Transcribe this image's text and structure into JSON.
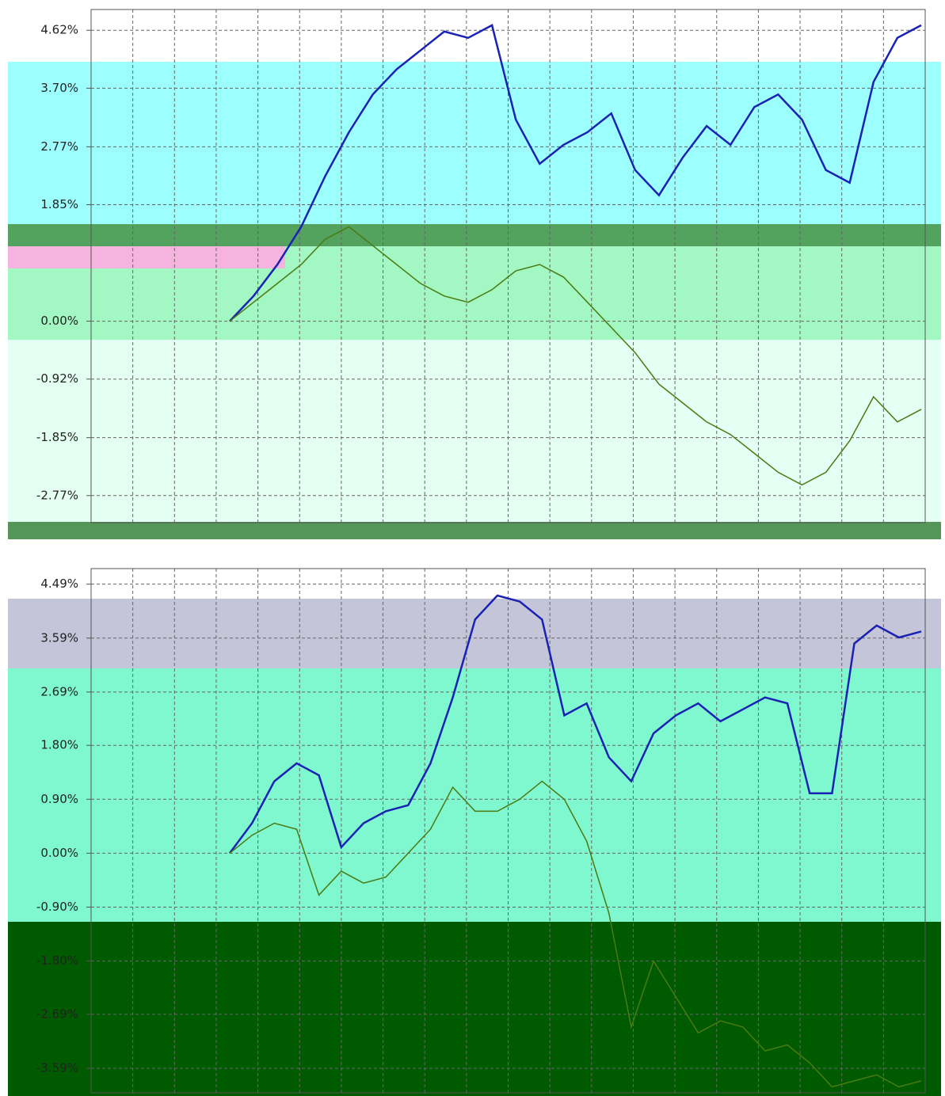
{
  "chart_data": [
    {
      "type": "line",
      "ylim": [
        -3.2,
        4.95
      ],
      "yticks": [
        {
          "value": 4.62,
          "label": "4.62%"
        },
        {
          "value": 3.7,
          "label": "3.70%"
        },
        {
          "value": 2.77,
          "label": "2.77%"
        },
        {
          "value": 1.85,
          "label": "1.85%"
        },
        {
          "value": 0,
          "label": "0.00%"
        },
        {
          "value": -0.92,
          "label": "-0.92%"
        },
        {
          "value": -1.85,
          "label": "-1.85%"
        },
        {
          "value": -2.77,
          "label": "-2.77%"
        }
      ],
      "grid": true,
      "series": [
        {
          "color": "#1a22b4",
          "values": [
            0,
            0.4,
            0.9,
            1.5,
            2.3,
            3.0,
            3.6,
            4.0,
            4.3,
            4.6,
            4.5,
            4.7,
            3.2,
            2.5,
            2.8,
            3.0,
            3.3,
            2.4,
            2.0,
            2.6,
            3.1,
            2.8,
            3.4,
            3.6,
            3.2,
            2.4,
            2.2,
            3.8,
            4.5,
            4.7
          ]
        },
        {
          "color": "#4a7a10",
          "values": [
            0,
            0.3,
            0.6,
            0.9,
            1.3,
            1.5,
            1.2,
            0.9,
            0.6,
            0.4,
            0.3,
            0.5,
            0.8,
            0.9,
            0.7,
            0.3,
            -0.1,
            -0.5,
            -1.0,
            -1.3,
            -1.6,
            -1.8,
            -2.1,
            -2.4,
            -2.6,
            -2.4,
            -1.9,
            -1.2,
            -1.6,
            -1.4
          ]
        }
      ]
    },
    {
      "type": "line",
      "ylim": [
        -4.0,
        4.75
      ],
      "yticks": [
        {
          "value": 4.49,
          "label": "4.49%"
        },
        {
          "value": 3.59,
          "label": "3.59%"
        },
        {
          "value": 2.69,
          "label": "2.69%"
        },
        {
          "value": 1.8,
          "label": "1.80%"
        },
        {
          "value": 0.9,
          "label": "0.90%"
        },
        {
          "value": 0,
          "label": "0.00%"
        },
        {
          "value": -0.9,
          "label": "-0.90%"
        },
        {
          "value": -1.8,
          "label": "-1.80%"
        },
        {
          "value": -2.69,
          "label": "-2.69%"
        },
        {
          "value": -3.59,
          "label": "-3.59%"
        }
      ],
      "grid": true,
      "series": [
        {
          "color": "#1a22b4",
          "values": [
            0,
            0.5,
            1.2,
            1.5,
            1.3,
            0.1,
            0.5,
            0.7,
            0.8,
            1.5,
            2.6,
            3.9,
            4.3,
            4.2,
            3.9,
            2.3,
            2.5,
            1.6,
            1.2,
            2.0,
            2.3,
            2.5,
            2.2,
            2.4,
            2.6,
            2.5,
            1.0,
            1.0,
            3.5,
            3.8,
            3.6,
            3.7
          ]
        },
        {
          "color": "#4a7a10",
          "values": [
            0,
            0.3,
            0.5,
            0.4,
            -0.7,
            -0.3,
            -0.5,
            -0.4,
            0,
            0.4,
            1.1,
            0.7,
            0.7,
            0.9,
            1.2,
            0.9,
            0.2,
            -1.0,
            -2.9,
            -1.8,
            -2.4,
            -3.0,
            -2.8,
            -2.9,
            -3.3,
            -3.2,
            -3.5,
            -3.9,
            -3.8,
            -3.7,
            -3.9,
            -3.8
          ]
        }
      ]
    }
  ]
}
